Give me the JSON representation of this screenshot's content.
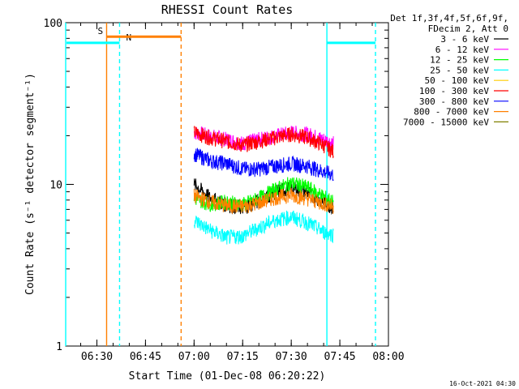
{
  "chart_data": {
    "type": "line",
    "title": "RHESSI Count Rates",
    "xlabel": "Start Time (01-Dec-08 06:20:22)",
    "ylabel": "Count Rate (s⁻¹ detector segment⁻¹)",
    "yscale": "log",
    "ylim": [
      1,
      100
    ],
    "xlim": [
      "06:20:22",
      "08:00:00"
    ],
    "x_ticks": [
      "06:30",
      "06:45",
      "07:00",
      "07:15",
      "07:30",
      "07:45",
      "08:00"
    ],
    "y_ticks": [
      "1",
      "10",
      "100"
    ],
    "legend_header": [
      "Det 1f,3f,4f,5f,6f,9f,",
      "FDecim 2, Att 0"
    ],
    "legend_position": "top-right",
    "footer_timestamp": "16-Oct-2021 04:30",
    "series": [
      {
        "name": "3 - 6 keV",
        "color": "#000000",
        "x": [
          "07:00",
          "07:05",
          "07:10",
          "07:15",
          "07:20",
          "07:25",
          "07:30",
          "07:35",
          "07:40",
          "07:43"
        ],
        "values": [
          10,
          8.2,
          7.5,
          7.2,
          7.9,
          9.0,
          9.5,
          8.9,
          7.8,
          7.2
        ]
      },
      {
        "name": "6 - 12 keV",
        "color": "#ff00ff",
        "x": [
          "07:00",
          "07:05",
          "07:10",
          "07:15",
          "07:20",
          "07:25",
          "07:30",
          "07:35",
          "07:40",
          "07:43"
        ],
        "values": [
          21,
          20,
          19,
          18,
          19,
          20,
          21,
          20.5,
          19,
          18
        ]
      },
      {
        "name": "12 - 25 keV",
        "color": "#00ff00",
        "x": [
          "07:00",
          "07:05",
          "07:10",
          "07:15",
          "07:20",
          "07:25",
          "07:30",
          "07:35",
          "07:40",
          "07:43"
        ],
        "values": [
          8.2,
          7.6,
          7.8,
          7.5,
          8.2,
          9.3,
          10.2,
          9.6,
          8.4,
          7.8
        ]
      },
      {
        "name": "25 - 50 keV",
        "color": "#00ffff",
        "x": [
          "07:00",
          "07:05",
          "07:10",
          "07:15",
          "07:20",
          "07:25",
          "07:30",
          "07:35",
          "07:40",
          "07:43"
        ],
        "values": [
          6.0,
          5.2,
          4.7,
          4.8,
          5.4,
          6.0,
          6.3,
          5.8,
          5.1,
          4.9
        ]
      },
      {
        "name": "50 - 100 keV",
        "color": "#ffcc00",
        "x": [],
        "values": []
      },
      {
        "name": "100 - 300 keV",
        "color": "#ff0000",
        "x": [
          "07:00",
          "07:05",
          "07:10",
          "07:15",
          "07:20",
          "07:25",
          "07:30",
          "07:35",
          "07:40",
          "07:43"
        ],
        "values": [
          21,
          19.5,
          18.5,
          17.5,
          18.5,
          19.5,
          20.5,
          19.5,
          17.5,
          16
        ]
      },
      {
        "name": "300 - 800 keV",
        "color": "#0000ff",
        "x": [
          "07:00",
          "07:05",
          "07:10",
          "07:15",
          "07:20",
          "07:25",
          "07:30",
          "07:35",
          "07:40",
          "07:43"
        ],
        "values": [
          15.5,
          14,
          13.5,
          12.5,
          12.5,
          13,
          13.5,
          13,
          12,
          11.5
        ]
      },
      {
        "name": "800 - 7000 keV",
        "color": "#ff8000",
        "x": [
          "07:00",
          "07:05",
          "07:10",
          "07:15",
          "07:20",
          "07:25",
          "07:30",
          "07:35",
          "07:40",
          "07:43"
        ],
        "values": [
          8.5,
          7.8,
          7.4,
          7.3,
          7.7,
          8.3,
          8.6,
          8.2,
          7.6,
          7.3
        ]
      },
      {
        "name": "7000 - 15000 keV",
        "color": "#808000",
        "x": [],
        "values": []
      }
    ],
    "time_intervals": [
      {
        "color": "#00ffff",
        "x_start": "06:20:22",
        "x_end": "06:37:00",
        "style": "solid bar",
        "level": 75,
        "label": "N"
      },
      {
        "color": "#ff8000",
        "x_start": "06:33:00",
        "x_end": "06:56:00",
        "style": "solid bar",
        "level": 82,
        "label": "S"
      },
      {
        "color": "#00ffff",
        "x_start": "07:41:00",
        "x_end": "07:56:00",
        "style": "solid bar",
        "level": 75,
        "label": ""
      }
    ],
    "markers": [
      {
        "x": "06:20:22",
        "color": "#00ffff",
        "style": "solid"
      },
      {
        "x": "06:33:00",
        "color": "#ff8000",
        "style": "solid"
      },
      {
        "x": "06:37:00",
        "color": "#00ffff",
        "style": "dashed"
      },
      {
        "x": "06:56:00",
        "color": "#ff8000",
        "style": "dashed"
      },
      {
        "x": "07:41:00",
        "color": "#00ffff",
        "style": "solid"
      },
      {
        "x": "07:56:00",
        "color": "#00ffff",
        "style": "dashed"
      }
    ]
  }
}
